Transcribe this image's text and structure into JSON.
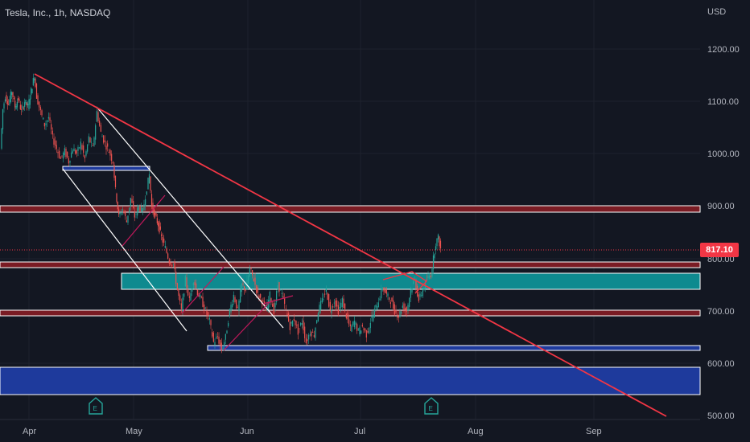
{
  "header": {
    "title": "Tesla, Inc., 1h, NASDAQ",
    "currency": "USD"
  },
  "last_price": "817.10",
  "colors": {
    "background": "#131722",
    "up": "#26a69a",
    "down": "#ef5350",
    "trendline": "#f23645",
    "channel": "#ffffff",
    "teal_zone": "#0e8a8f",
    "blue_zone": "#1e3a9c",
    "red_band": "#7a1c24",
    "earnings": "#26a69a"
  },
  "chart_data": {
    "type": "candlestick",
    "y_axis": {
      "ticks": [
        "1200.00",
        "1100.00",
        "1000.00",
        "900.00",
        "800.00",
        "700.00",
        "600.00",
        "500.00"
      ],
      "ylim": [
        490,
        1280
      ]
    },
    "x_axis": {
      "ticks": [
        "Apr",
        "May",
        "Jun",
        "Jul",
        "Aug",
        "Sep"
      ]
    },
    "price_path": [
      [
        0,
        1010
      ],
      [
        3,
        1085
      ],
      [
        6,
        1110
      ],
      [
        10,
        1095
      ],
      [
        14,
        1120
      ],
      [
        18,
        1090
      ],
      [
        22,
        1105
      ],
      [
        26,
        1080
      ],
      [
        30,
        1100
      ],
      [
        34,
        1090
      ],
      [
        38,
        1120
      ],
      [
        42,
        1150
      ],
      [
        45,
        1110
      ],
      [
        50,
        1080
      ],
      [
        55,
        1055
      ],
      [
        60,
        1070
      ],
      [
        65,
        1030
      ],
      [
        70,
        1010
      ],
      [
        75,
        990
      ],
      [
        80,
        1005
      ],
      [
        85,
        985
      ],
      [
        90,
        1010
      ],
      [
        95,
        1000
      ],
      [
        100,
        1020
      ],
      [
        105,
        990
      ],
      [
        110,
        1030
      ],
      [
        115,
        1010
      ],
      [
        120,
        1080
      ],
      [
        125,
        1040
      ],
      [
        130,
        1020
      ],
      [
        135,
        1005
      ],
      [
        140,
        985
      ],
      [
        143,
        930
      ],
      [
        147,
        880
      ],
      [
        152,
        895
      ],
      [
        157,
        870
      ],
      [
        162,
        915
      ],
      [
        167,
        880
      ],
      [
        172,
        900
      ],
      [
        177,
        890
      ],
      [
        182,
        935
      ],
      [
        185,
        960
      ],
      [
        188,
        900
      ],
      [
        192,
        880
      ],
      [
        196,
        865
      ],
      [
        200,
        840
      ],
      [
        205,
        820
      ],
      [
        210,
        795
      ],
      [
        215,
        790
      ],
      [
        220,
        740
      ],
      [
        225,
        700
      ],
      [
        230,
        760
      ],
      [
        235,
        720
      ],
      [
        240,
        760
      ],
      [
        245,
        735
      ],
      [
        250,
        720
      ],
      [
        255,
        700
      ],
      [
        260,
        680
      ],
      [
        265,
        640
      ],
      [
        270,
        650
      ],
      [
        275,
        625
      ],
      [
        280,
        650
      ],
      [
        285,
        700
      ],
      [
        290,
        730
      ],
      [
        295,
        700
      ],
      [
        300,
        750
      ],
      [
        305,
        740
      ],
      [
        310,
        780
      ],
      [
        315,
        760
      ],
      [
        320,
        730
      ],
      [
        325,
        720
      ],
      [
        330,
        700
      ],
      [
        335,
        730
      ],
      [
        340,
        700
      ],
      [
        345,
        750
      ],
      [
        350,
        730
      ],
      [
        355,
        700
      ],
      [
        360,
        670
      ],
      [
        365,
        685
      ],
      [
        370,
        660
      ],
      [
        375,
        680
      ],
      [
        380,
        640
      ],
      [
        385,
        660
      ],
      [
        390,
        655
      ],
      [
        395,
        700
      ],
      [
        400,
        720
      ],
      [
        405,
        740
      ],
      [
        410,
        700
      ],
      [
        415,
        720
      ],
      [
        420,
        700
      ],
      [
        425,
        720
      ],
      [
        430,
        690
      ],
      [
        435,
        665
      ],
      [
        440,
        680
      ],
      [
        445,
        660
      ],
      [
        450,
        670
      ],
      [
        455,
        655
      ],
      [
        460,
        680
      ],
      [
        465,
        700
      ],
      [
        470,
        720
      ],
      [
        475,
        745
      ],
      [
        480,
        730
      ],
      [
        485,
        720
      ],
      [
        490,
        700
      ],
      [
        495,
        690
      ],
      [
        500,
        710
      ],
      [
        505,
        700
      ],
      [
        510,
        740
      ],
      [
        515,
        760
      ],
      [
        520,
        720
      ],
      [
        525,
        740
      ],
      [
        530,
        760
      ],
      [
        535,
        770
      ],
      [
        538,
        800
      ],
      [
        541,
        830
      ],
      [
        544,
        840
      ],
      [
        547,
        818
      ]
    ],
    "zones": [
      {
        "name": "red band",
        "from": 891,
        "to": 905
      },
      {
        "name": "red band",
        "from": 782,
        "to": 795
      },
      {
        "name": "red band",
        "from": 693,
        "to": 705
      },
      {
        "name": "teal zone",
        "from": 742,
        "to": 772
      },
      {
        "name": "blue support",
        "from": 625,
        "to": 632
      },
      {
        "name": "blue zone",
        "from": 542,
        "to": 590
      }
    ]
  }
}
